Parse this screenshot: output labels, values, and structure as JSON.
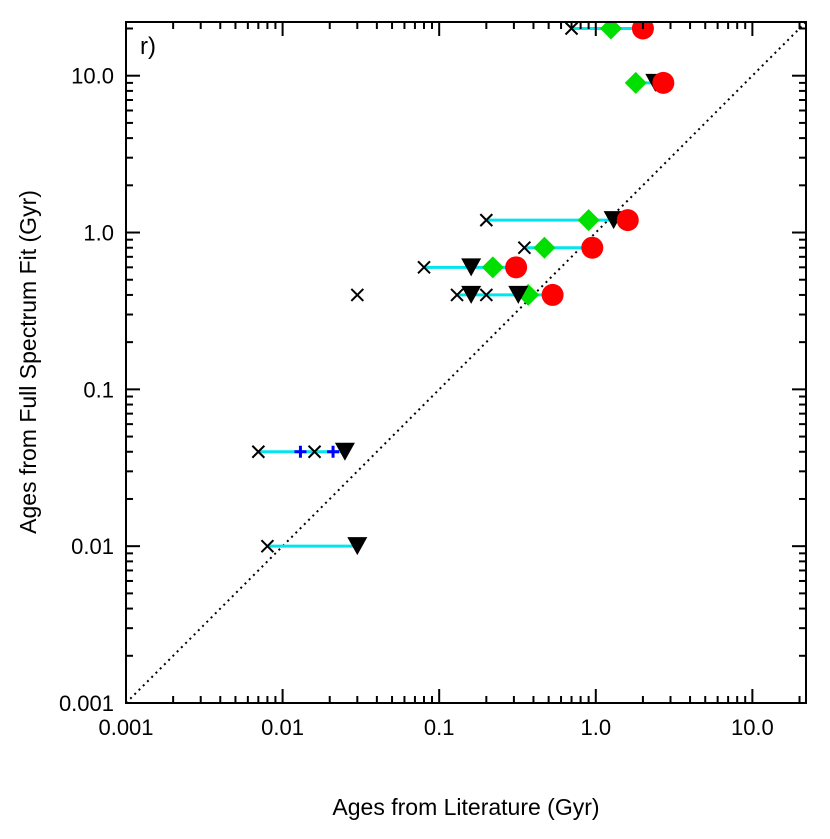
{
  "chart_data": {
    "type": "scatter",
    "panel_label": "r)",
    "xlabel": "Ages from Literature (Gyr)",
    "ylabel": "Ages from Full Spectrum Fit (Gyr)",
    "x_scale": "log",
    "y_scale": "log",
    "xlim": [
      0.001,
      22
    ],
    "ylim": [
      0.001,
      22
    ],
    "x_ticks": [
      0.001,
      0.01,
      0.1,
      1.0,
      10.0
    ],
    "x_tick_labels": [
      "0.001",
      "0.01",
      "0.1",
      "1.0",
      "10.0"
    ],
    "y_ticks": [
      0.001,
      0.01,
      0.1,
      1.0,
      10.0
    ],
    "y_tick_labels": [
      "0.001",
      "0.01",
      "0.1",
      "1.0",
      "10.0"
    ],
    "one_to_one_line": true,
    "connectors": [
      {
        "y": 20.0,
        "x1": 0.7,
        "x2": 2.0
      },
      {
        "y": 9.0,
        "x1": 1.8,
        "x2": 2.7
      },
      {
        "y": 1.2,
        "x1": 0.2,
        "x2": 1.6
      },
      {
        "y": 0.8,
        "x1": 0.35,
        "x2": 0.95
      },
      {
        "y": 0.6,
        "x1": 0.08,
        "x2": 0.31
      },
      {
        "y": 0.4,
        "x1": 0.13,
        "x2": 0.53
      },
      {
        "y": 0.04,
        "x1": 0.007,
        "x2": 0.026
      },
      {
        "y": 0.01,
        "x1": 0.008,
        "x2": 0.03
      }
    ],
    "series": [
      {
        "name": "red-circle",
        "marker": "circle",
        "color": "#ff0000",
        "points": [
          {
            "x": 2.0,
            "y": 20.0
          },
          {
            "x": 2.7,
            "y": 9.0
          },
          {
            "x": 1.6,
            "y": 1.2
          },
          {
            "x": 0.95,
            "y": 0.8
          },
          {
            "x": 0.31,
            "y": 0.6
          },
          {
            "x": 0.53,
            "y": 0.4
          }
        ]
      },
      {
        "name": "green-diamond",
        "marker": "diamond",
        "color": "#00e000",
        "points": [
          {
            "x": 1.25,
            "y": 20.0
          },
          {
            "x": 1.8,
            "y": 9.0
          },
          {
            "x": 0.9,
            "y": 1.2
          },
          {
            "x": 0.47,
            "y": 0.8
          },
          {
            "x": 0.22,
            "y": 0.6
          },
          {
            "x": 0.37,
            "y": 0.4
          }
        ]
      },
      {
        "name": "black-triangle",
        "marker": "triangle-down",
        "color": "#000000",
        "points": [
          {
            "x": 2.4,
            "y": 9.0
          },
          {
            "x": 1.3,
            "y": 1.2
          },
          {
            "x": 0.16,
            "y": 0.6
          },
          {
            "x": 0.16,
            "y": 0.4
          },
          {
            "x": 0.32,
            "y": 0.4
          },
          {
            "x": 0.025,
            "y": 0.04
          },
          {
            "x": 0.03,
            "y": 0.01
          }
        ]
      },
      {
        "name": "blue-plus",
        "marker": "plus",
        "color": "#0000ff",
        "points": [
          {
            "x": 0.013,
            "y": 0.04
          },
          {
            "x": 0.021,
            "y": 0.04
          }
        ]
      },
      {
        "name": "black-cross",
        "marker": "x",
        "color": "#000000",
        "points": [
          {
            "x": 0.7,
            "y": 20.0
          },
          {
            "x": 0.2,
            "y": 1.2
          },
          {
            "x": 0.35,
            "y": 0.8
          },
          {
            "x": 0.08,
            "y": 0.6
          },
          {
            "x": 0.03,
            "y": 0.4
          },
          {
            "x": 0.13,
            "y": 0.4
          },
          {
            "x": 0.2,
            "y": 0.4
          },
          {
            "x": 0.007,
            "y": 0.04
          },
          {
            "x": 0.016,
            "y": 0.04
          },
          {
            "x": 0.008,
            "y": 0.01
          }
        ]
      }
    ]
  }
}
